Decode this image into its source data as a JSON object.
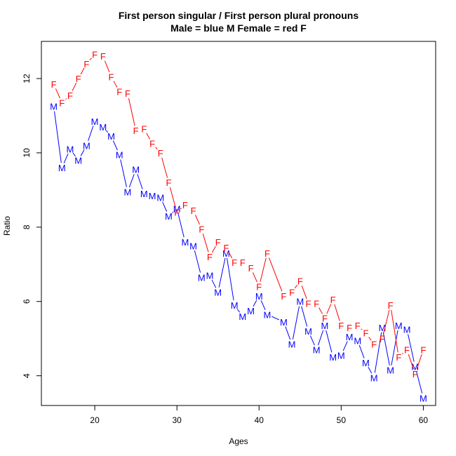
{
  "chart_data": {
    "type": "line",
    "title": "First person singular / First person plural pronouns",
    "subtitle": "Male = blue M    Female = red F",
    "xlabel": "Ages",
    "ylabel": "Ratio",
    "xlim": [
      13.5,
      61.5
    ],
    "ylim": [
      3.2,
      13.0
    ],
    "x_ticks": [
      20,
      30,
      40,
      50,
      60
    ],
    "y_ticks": [
      4,
      6,
      8,
      10,
      12
    ],
    "grid": false,
    "series": [
      {
        "name": "Male",
        "marker": "M",
        "color": "#0000ff",
        "x": [
          15,
          16,
          17,
          18,
          19,
          20,
          21,
          22,
          23,
          24,
          25,
          26,
          27,
          28,
          29,
          30,
          31,
          32,
          33,
          34,
          35,
          36,
          37,
          38,
          39,
          40,
          41,
          43,
          44,
          45,
          46,
          47,
          48,
          49,
          50,
          51,
          52,
          53,
          54,
          55,
          56,
          57,
          58,
          59,
          60
        ],
        "y": [
          11.25,
          9.6,
          10.1,
          9.8,
          10.2,
          10.85,
          10.7,
          10.45,
          9.95,
          8.95,
          9.55,
          8.9,
          8.85,
          8.8,
          8.3,
          8.5,
          7.6,
          7.5,
          6.65,
          6.7,
          6.25,
          7.3,
          5.9,
          5.6,
          5.75,
          6.15,
          5.65,
          5.45,
          4.85,
          6.0,
          5.2,
          4.7,
          5.35,
          4.5,
          4.55,
          5.05,
          4.95,
          4.35,
          3.95,
          5.3,
          4.15,
          5.35,
          5.25,
          4.25,
          3.4
        ]
      },
      {
        "name": "Female",
        "marker": "F",
        "color": "#ff0000",
        "x": [
          15,
          16,
          17,
          18,
          19,
          20,
          21,
          22,
          23,
          24,
          25,
          26,
          27,
          28,
          29,
          30,
          31,
          32,
          33,
          34,
          35,
          36,
          37,
          38,
          39,
          40,
          41,
          43,
          44,
          45,
          46,
          47,
          48,
          49,
          50,
          51,
          52,
          53,
          54,
          55,
          56,
          57,
          58,
          59,
          60
        ],
        "y": [
          11.85,
          11.35,
          11.55,
          12.0,
          12.4,
          12.65,
          12.6,
          12.05,
          11.65,
          11.6,
          10.6,
          10.65,
          10.25,
          10.0,
          9.2,
          8.4,
          8.6,
          8.45,
          7.95,
          7.2,
          7.6,
          7.45,
          7.05,
          7.05,
          6.9,
          6.4,
          7.3,
          6.15,
          6.25,
          6.55,
          5.95,
          5.95,
          5.55,
          6.05,
          5.35,
          5.3,
          5.35,
          5.15,
          4.85,
          5.0,
          5.9,
          4.5,
          4.7,
          4.05,
          4.7
        ]
      }
    ]
  }
}
